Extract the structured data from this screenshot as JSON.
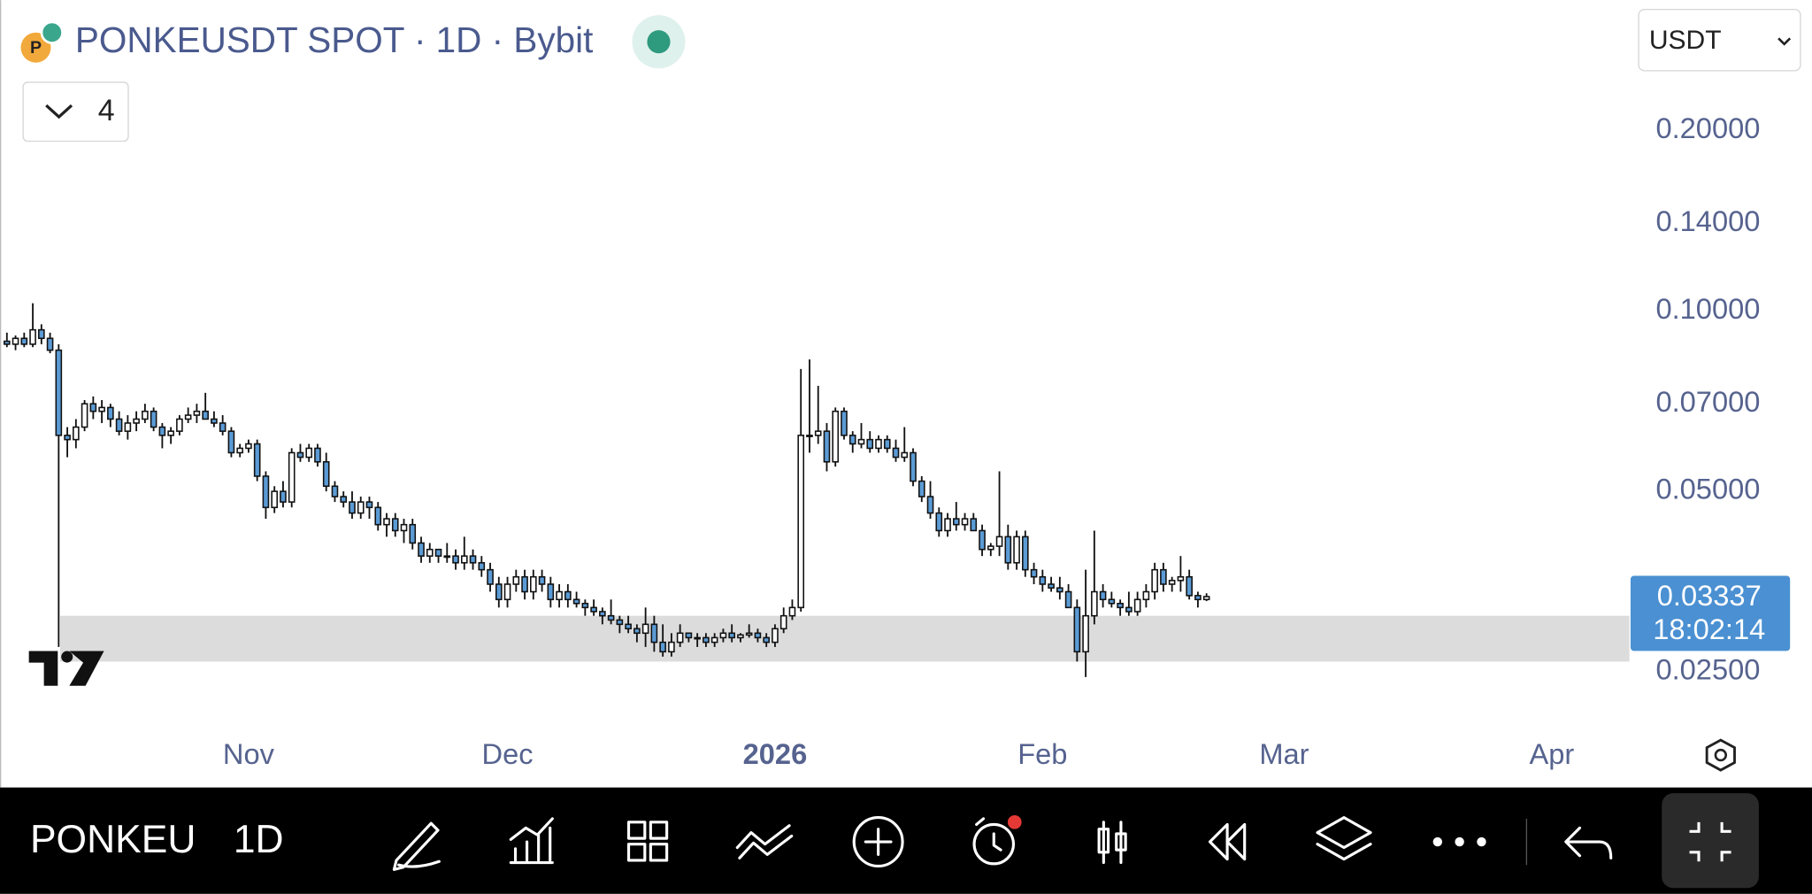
{
  "header": {
    "title": "PONKEUSDT SPOT · 1D · Bybit",
    "indicators": "4",
    "currency": "USDT"
  },
  "chart_data": {
    "type": "candlestick",
    "candles": [
      [
        0.089,
        0.092,
        0.087,
        0.088
      ],
      [
        0.088,
        0.091,
        0.086,
        0.09
      ],
      [
        0.09,
        0.092,
        0.087,
        0.088
      ],
      [
        0.088,
        0.103,
        0.087,
        0.093
      ],
      [
        0.093,
        0.095,
        0.088,
        0.09
      ],
      [
        0.09,
        0.092,
        0.085,
        0.086
      ],
      [
        0.086,
        0.088,
        0.0275,
        0.062
      ],
      [
        0.062,
        0.064,
        0.057,
        0.061
      ],
      [
        0.061,
        0.066,
        0.059,
        0.064
      ],
      [
        0.064,
        0.071,
        0.063,
        0.07
      ],
      [
        0.07,
        0.072,
        0.066,
        0.068
      ],
      [
        0.068,
        0.071,
        0.065,
        0.069
      ],
      [
        0.069,
        0.07,
        0.064,
        0.066
      ],
      [
        0.066,
        0.068,
        0.062,
        0.063
      ],
      [
        0.063,
        0.067,
        0.061,
        0.065
      ],
      [
        0.065,
        0.068,
        0.063,
        0.066
      ],
      [
        0.066,
        0.07,
        0.065,
        0.068
      ],
      [
        0.068,
        0.069,
        0.063,
        0.064
      ],
      [
        0.064,
        0.065,
        0.059,
        0.062
      ],
      [
        0.062,
        0.064,
        0.06,
        0.063
      ],
      [
        0.063,
        0.067,
        0.062,
        0.066
      ],
      [
        0.066,
        0.069,
        0.065,
        0.067
      ],
      [
        0.067,
        0.07,
        0.065,
        0.068
      ],
      [
        0.068,
        0.073,
        0.066,
        0.066
      ],
      [
        0.066,
        0.068,
        0.064,
        0.065
      ],
      [
        0.065,
        0.067,
        0.062,
        0.063
      ],
      [
        0.063,
        0.064,
        0.057,
        0.058
      ],
      [
        0.058,
        0.06,
        0.057,
        0.059
      ],
      [
        0.059,
        0.061,
        0.058,
        0.06
      ],
      [
        0.06,
        0.061,
        0.052,
        0.053
      ],
      [
        0.053,
        0.054,
        0.045,
        0.047
      ],
      [
        0.047,
        0.051,
        0.046,
        0.05
      ],
      [
        0.05,
        0.052,
        0.047,
        0.048
      ],
      [
        0.048,
        0.059,
        0.047,
        0.058
      ],
      [
        0.058,
        0.06,
        0.056,
        0.057
      ],
      [
        0.057,
        0.06,
        0.056,
        0.059
      ],
      [
        0.059,
        0.06,
        0.055,
        0.056
      ],
      [
        0.056,
        0.058,
        0.05,
        0.051
      ],
      [
        0.051,
        0.052,
        0.048,
        0.049
      ],
      [
        0.049,
        0.05,
        0.047,
        0.048
      ],
      [
        0.048,
        0.05,
        0.045,
        0.046
      ],
      [
        0.046,
        0.049,
        0.045,
        0.048
      ],
      [
        0.048,
        0.049,
        0.045,
        0.047
      ],
      [
        0.047,
        0.048,
        0.043,
        0.044
      ],
      [
        0.044,
        0.046,
        0.042,
        0.045
      ],
      [
        0.045,
        0.046,
        0.042,
        0.043
      ],
      [
        0.043,
        0.045,
        0.041,
        0.044
      ],
      [
        0.044,
        0.045,
        0.04,
        0.041
      ],
      [
        0.041,
        0.042,
        0.038,
        0.039
      ],
      [
        0.039,
        0.041,
        0.038,
        0.04
      ],
      [
        0.04,
        0.04,
        0.038,
        0.039
      ],
      [
        0.039,
        0.041,
        0.038,
        0.039
      ],
      [
        0.039,
        0.04,
        0.037,
        0.038
      ],
      [
        0.038,
        0.042,
        0.037,
        0.039
      ],
      [
        0.039,
        0.04,
        0.037,
        0.038
      ],
      [
        0.038,
        0.039,
        0.036,
        0.037
      ],
      [
        0.037,
        0.038,
        0.034,
        0.035
      ],
      [
        0.035,
        0.036,
        0.032,
        0.033
      ],
      [
        0.033,
        0.036,
        0.032,
        0.035
      ],
      [
        0.035,
        0.037,
        0.034,
        0.036
      ],
      [
        0.036,
        0.037,
        0.033,
        0.034
      ],
      [
        0.034,
        0.037,
        0.033,
        0.036
      ],
      [
        0.036,
        0.037,
        0.034,
        0.035
      ],
      [
        0.035,
        0.036,
        0.032,
        0.033
      ],
      [
        0.033,
        0.035,
        0.032,
        0.034
      ],
      [
        0.034,
        0.035,
        0.032,
        0.033
      ],
      [
        0.033,
        0.034,
        0.032,
        0.0325
      ],
      [
        0.0325,
        0.033,
        0.031,
        0.032
      ],
      [
        0.032,
        0.033,
        0.031,
        0.0315
      ],
      [
        0.0315,
        0.032,
        0.03,
        0.031
      ],
      [
        0.031,
        0.033,
        0.03,
        0.0305
      ],
      [
        0.0305,
        0.031,
        0.029,
        0.03
      ],
      [
        0.03,
        0.031,
        0.029,
        0.0295
      ],
      [
        0.0295,
        0.03,
        0.028,
        0.029
      ],
      [
        0.029,
        0.032,
        0.0275,
        0.03
      ],
      [
        0.03,
        0.031,
        0.027,
        0.028
      ],
      [
        0.028,
        0.03,
        0.0265,
        0.027
      ],
      [
        0.027,
        0.029,
        0.0265,
        0.028
      ],
      [
        0.028,
        0.03,
        0.0275,
        0.029
      ],
      [
        0.029,
        0.029,
        0.028,
        0.0285
      ],
      [
        0.0285,
        0.029,
        0.0275,
        0.0285
      ],
      [
        0.0285,
        0.029,
        0.0275,
        0.028
      ],
      [
        0.028,
        0.029,
        0.0275,
        0.0285
      ],
      [
        0.0285,
        0.0295,
        0.028,
        0.029
      ],
      [
        0.029,
        0.03,
        0.028,
        0.0285
      ],
      [
        0.0285,
        0.029,
        0.028,
        0.0288
      ],
      [
        0.0288,
        0.03,
        0.0285,
        0.029
      ],
      [
        0.029,
        0.0295,
        0.028,
        0.0285
      ],
      [
        0.0285,
        0.029,
        0.0275,
        0.028
      ],
      [
        0.028,
        0.03,
        0.0275,
        0.0295
      ],
      [
        0.0295,
        0.032,
        0.029,
        0.031
      ],
      [
        0.031,
        0.033,
        0.0305,
        0.032
      ],
      [
        0.032,
        0.08,
        0.0315,
        0.062
      ],
      [
        0.062,
        0.083,
        0.058,
        0.062
      ],
      [
        0.062,
        0.075,
        0.06,
        0.063
      ],
      [
        0.063,
        0.065,
        0.054,
        0.056
      ],
      [
        0.056,
        0.069,
        0.055,
        0.068
      ],
      [
        0.068,
        0.069,
        0.061,
        0.062
      ],
      [
        0.062,
        0.063,
        0.058,
        0.06
      ],
      [
        0.06,
        0.065,
        0.059,
        0.061
      ],
      [
        0.061,
        0.063,
        0.058,
        0.059
      ],
      [
        0.059,
        0.062,
        0.058,
        0.061
      ],
      [
        0.061,
        0.062,
        0.058,
        0.059
      ],
      [
        0.059,
        0.061,
        0.056,
        0.057
      ],
      [
        0.057,
        0.064,
        0.056,
        0.058
      ],
      [
        0.058,
        0.059,
        0.051,
        0.052
      ],
      [
        0.052,
        0.053,
        0.048,
        0.049
      ],
      [
        0.049,
        0.052,
        0.045,
        0.046
      ],
      [
        0.046,
        0.047,
        0.042,
        0.043
      ],
      [
        0.043,
        0.046,
        0.042,
        0.045
      ],
      [
        0.045,
        0.048,
        0.043,
        0.044
      ],
      [
        0.044,
        0.046,
        0.043,
        0.045
      ],
      [
        0.045,
        0.046,
        0.043,
        0.043
      ],
      [
        0.043,
        0.044,
        0.039,
        0.04
      ],
      [
        0.04,
        0.041,
        0.039,
        0.0405
      ],
      [
        0.0405,
        0.054,
        0.039,
        0.042
      ],
      [
        0.042,
        0.044,
        0.037,
        0.038
      ],
      [
        0.038,
        0.043,
        0.037,
        0.042
      ],
      [
        0.042,
        0.043,
        0.036,
        0.037
      ],
      [
        0.037,
        0.038,
        0.035,
        0.036
      ],
      [
        0.036,
        0.037,
        0.034,
        0.035
      ],
      [
        0.035,
        0.036,
        0.034,
        0.0345
      ],
      [
        0.0345,
        0.036,
        0.033,
        0.034
      ],
      [
        0.034,
        0.035,
        0.032,
        0.032
      ],
      [
        0.032,
        0.033,
        0.026,
        0.027
      ],
      [
        0.027,
        0.037,
        0.0245,
        0.031
      ],
      [
        0.031,
        0.043,
        0.03,
        0.034
      ],
      [
        0.034,
        0.035,
        0.032,
        0.033
      ],
      [
        0.033,
        0.034,
        0.032,
        0.0325
      ],
      [
        0.0325,
        0.033,
        0.031,
        0.032
      ],
      [
        0.032,
        0.034,
        0.031,
        0.0315
      ],
      [
        0.0315,
        0.034,
        0.031,
        0.033
      ],
      [
        0.033,
        0.035,
        0.032,
        0.034
      ],
      [
        0.034,
        0.038,
        0.033,
        0.037
      ],
      [
        0.037,
        0.038,
        0.034,
        0.035
      ],
      [
        0.035,
        0.036,
        0.034,
        0.0355
      ],
      [
        0.0355,
        0.039,
        0.034,
        0.036
      ],
      [
        0.036,
        0.037,
        0.033,
        0.0335
      ],
      [
        0.0335,
        0.034,
        0.032,
        0.033
      ],
      [
        0.033,
        0.0338,
        0.0328,
        0.03337
      ]
    ],
    "colors": {
      "up": "#ffffff",
      "down": "#5b9bd5",
      "wick": "#111111"
    },
    "log_scale": true,
    "ylim": [
      0.0161,
      0.33
    ],
    "yticks": [
      {
        "value": 0.025,
        "label": "0.02500"
      },
      {
        "value": 0.05,
        "label": "0.05000"
      },
      {
        "value": 0.07,
        "label": "0.07000"
      },
      {
        "value": 0.1,
        "label": "0.10000"
      },
      {
        "value": 0.14,
        "label": "0.14000"
      },
      {
        "value": 0.2,
        "label": "0.20000"
      }
    ],
    "xlim": [
      -0.8,
      188
    ],
    "xticks": [
      {
        "value": 28,
        "label": "Nov"
      },
      {
        "value": 58,
        "label": "Dec"
      },
      {
        "value": 89,
        "label": "2026"
      },
      {
        "value": 120,
        "label": "Feb"
      },
      {
        "value": 148,
        "label": "Mar"
      },
      {
        "value": 179,
        "label": "Apr"
      }
    ],
    "zone": [
      0.026,
      0.031
    ],
    "last_price": 0.03337,
    "countdown": "18:02:14"
  },
  "toolbar": {
    "symbol": "PONKEU",
    "interval": "1D"
  }
}
